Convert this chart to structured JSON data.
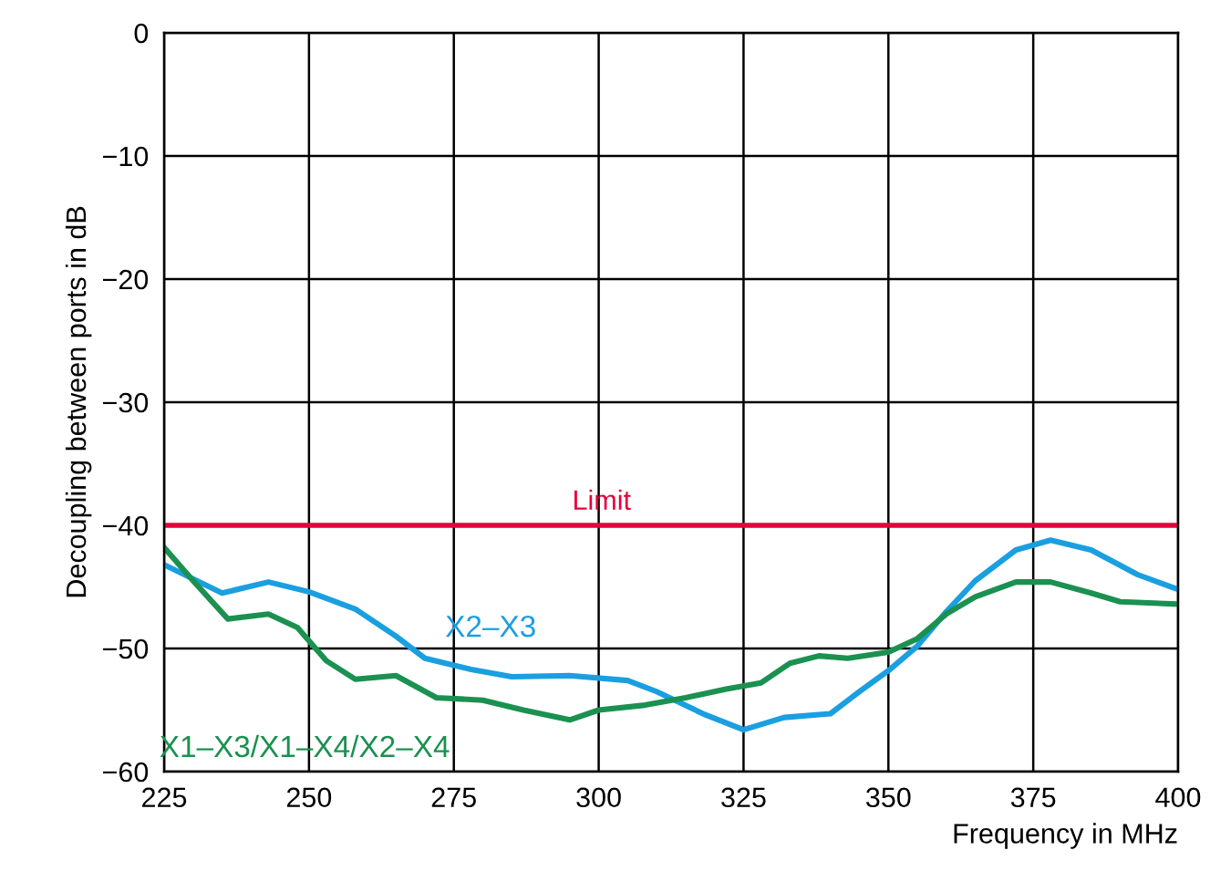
{
  "chart_data": {
    "type": "line",
    "xlabel": "Frequency in MHz",
    "ylabel": "Decoupling between ports in dB",
    "xlim": [
      225,
      400
    ],
    "xticks": [
      225,
      250,
      275,
      300,
      325,
      350,
      375,
      400
    ],
    "ylim": [
      -60,
      0
    ],
    "yticks": [
      0,
      {
        "value": -10,
        "label": "−10"
      },
      {
        "value": -20,
        "label": "−20"
      },
      {
        "value": -30,
        "label": "−30"
      },
      {
        "value": -40,
        "label": "−40"
      },
      {
        "value": -50,
        "label": "−50"
      },
      {
        "value": -60,
        "label": "−60"
      }
    ],
    "grid": true,
    "legend": false,
    "marker": "none",
    "line_style": "solid",
    "ref_lines": [
      {
        "axis": "y",
        "value": -40,
        "label": "Limit",
        "color": "#e5003a"
      }
    ],
    "series": [
      {
        "name": "X2–X3",
        "color": "#1a9fe0",
        "x": [
          225,
          235,
          243,
          250,
          258,
          265,
          270,
          278,
          285,
          295,
          305,
          310,
          318,
          325,
          332,
          340,
          345,
          350,
          355,
          360,
          365,
          372,
          378,
          385,
          393,
          400
        ],
        "values": [
          -43.2,
          -45.5,
          -44.6,
          -45.4,
          -46.8,
          -49.0,
          -50.8,
          -51.7,
          -52.3,
          -52.2,
          -52.6,
          -53.5,
          -55.3,
          -56.6,
          -55.6,
          -55.3,
          -53.5,
          -51.8,
          -49.8,
          -47.0,
          -44.5,
          -42.0,
          -41.2,
          -42.0,
          -44.0,
          -45.2
        ]
      },
      {
        "name": "X1–X3/X1–X4/X2–X4",
        "color": "#1a9150",
        "x": [
          225,
          230,
          236,
          243,
          248,
          253,
          258,
          265,
          272,
          280,
          287,
          295,
          300,
          308,
          315,
          322,
          328,
          333,
          338,
          343,
          350,
          355,
          360,
          365,
          372,
          378,
          385,
          390,
          400
        ],
        "values": [
          -41.8,
          -44.5,
          -47.6,
          -47.2,
          -48.3,
          -51.0,
          -52.5,
          -52.2,
          -54.0,
          -54.2,
          -55.0,
          -55.8,
          -55.0,
          -54.6,
          -54.0,
          -53.3,
          -52.8,
          -51.2,
          -50.6,
          -50.8,
          -50.3,
          -49.2,
          -47.2,
          -45.8,
          -44.6,
          -44.6,
          -45.5,
          -46.2,
          -46.4
        ]
      }
    ]
  }
}
